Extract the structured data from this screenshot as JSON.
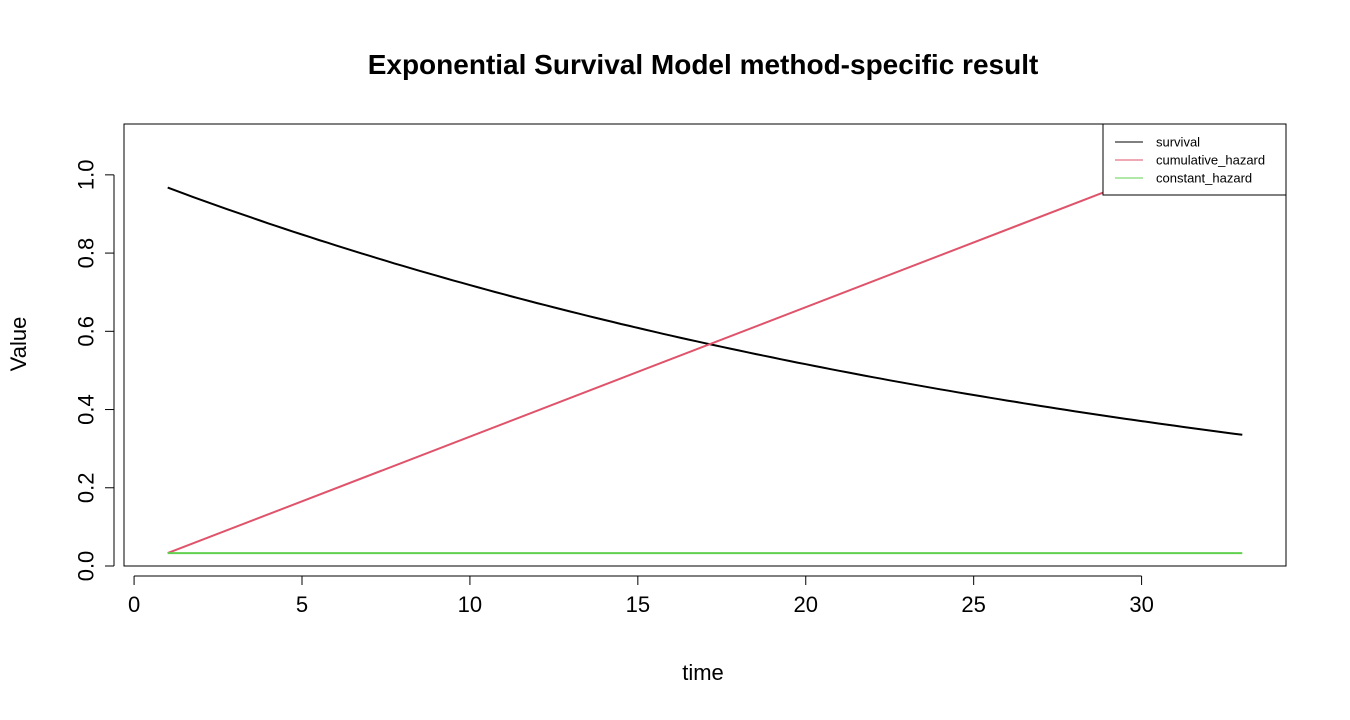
{
  "chart_data": {
    "type": "line",
    "title": "Exponential Survival Model method-specific result",
    "xlabel": "time",
    "ylabel": "Value",
    "xlim": [
      -0.3,
      34.3
    ],
    "ylim": [
      0,
      1.13
    ],
    "xticks": [
      0,
      5,
      10,
      15,
      20,
      25,
      30
    ],
    "yticks": [
      0.0,
      0.2,
      0.4,
      0.6,
      0.8,
      1.0
    ],
    "xtick_labels": [
      "0",
      "5",
      "10",
      "15",
      "20",
      "25",
      "30"
    ],
    "ytick_labels": [
      "0.0",
      "0.2",
      "0.4",
      "0.6",
      "0.8",
      "1.0"
    ],
    "grid": false,
    "legend_position": "top-right",
    "series": [
      {
        "name": "survival",
        "color": "#000000",
        "x": [
          1,
          5,
          10,
          15,
          20,
          25,
          33
        ],
        "y": [
          0.967,
          0.846,
          0.716,
          0.606,
          0.512,
          0.434,
          0.337
        ],
        "rate": 0.0331
      },
      {
        "name": "cumulative_hazard",
        "color": "#DF536B",
        "x": [
          1,
          33
        ],
        "y": [
          0.0331,
          1.092
        ]
      },
      {
        "name": "constant_hazard",
        "color": "#61D04F",
        "x": [
          1,
          33
        ],
        "y": [
          0.0331,
          0.0331
        ]
      }
    ]
  }
}
